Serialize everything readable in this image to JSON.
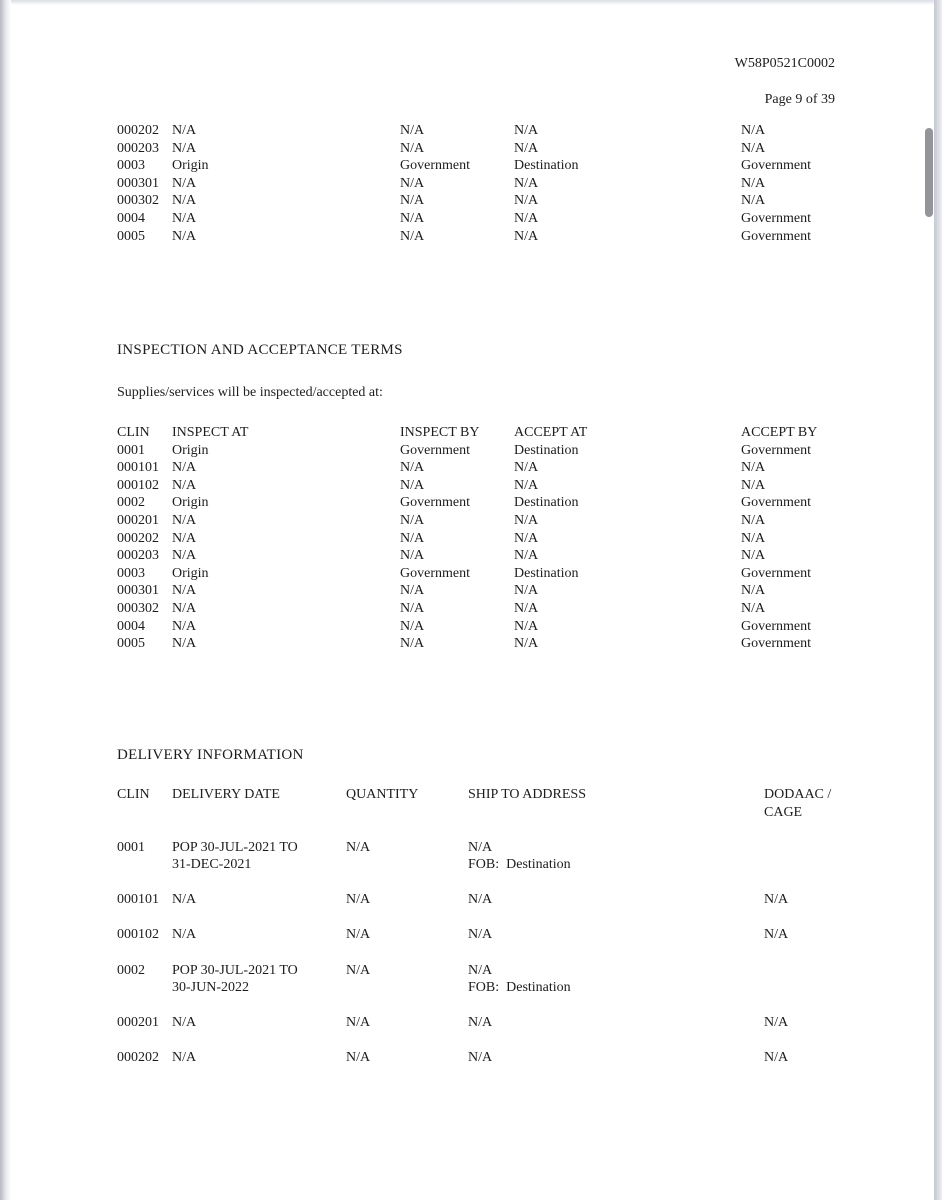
{
  "header": {
    "doc_number": "W58P0521C0002",
    "page_label": "Page 9 of 39"
  },
  "continuation_table": {
    "rows": [
      [
        "000202",
        "N/A",
        "N/A",
        "N/A",
        "N/A"
      ],
      [
        "000203",
        "N/A",
        "N/A",
        "N/A",
        "N/A"
      ],
      [
        "0003",
        "Origin",
        "Government",
        "Destination",
        "Government"
      ],
      [
        "000301",
        "N/A",
        "N/A",
        "N/A",
        "N/A"
      ],
      [
        "000302",
        "N/A",
        "N/A",
        "N/A",
        "N/A"
      ],
      [
        "0004",
        "N/A",
        "N/A",
        "N/A",
        "Government"
      ],
      [
        "0005",
        "N/A",
        "N/A",
        "N/A",
        "Government"
      ]
    ]
  },
  "inspection_section": {
    "heading": "INSPECTION AND ACCEPTANCE TERMS",
    "intro": "Supplies/services will be inspected/accepted at:",
    "headers": [
      "CLIN",
      "INSPECT AT",
      "INSPECT BY",
      "ACCEPT AT",
      "ACCEPT BY"
    ],
    "rows": [
      [
        "0001",
        "Origin",
        "Government",
        "Destination",
        "Government"
      ],
      [
        "000101",
        "N/A",
        "N/A",
        "N/A",
        "N/A"
      ],
      [
        "000102",
        "N/A",
        "N/A",
        "N/A",
        "N/A"
      ],
      [
        "0002",
        "Origin",
        "Government",
        "Destination",
        "Government"
      ],
      [
        "000201",
        "N/A",
        "N/A",
        "N/A",
        "N/A"
      ],
      [
        "000202",
        "N/A",
        "N/A",
        "N/A",
        "N/A"
      ],
      [
        "000203",
        "N/A",
        "N/A",
        "N/A",
        "N/A"
      ],
      [
        "0003",
        "Origin",
        "Government",
        "Destination",
        "Government"
      ],
      [
        "000301",
        "N/A",
        "N/A",
        "N/A",
        "N/A"
      ],
      [
        "000302",
        "N/A",
        "N/A",
        "N/A",
        "N/A"
      ],
      [
        "0004",
        "N/A",
        "N/A",
        "N/A",
        "Government"
      ],
      [
        "0005",
        "N/A",
        "N/A",
        "N/A",
        "Government"
      ]
    ]
  },
  "delivery_section": {
    "heading": "DELIVERY INFORMATION",
    "headers": [
      "CLIN",
      "DELIVERY DATE",
      "QUANTITY",
      "SHIP TO ADDRESS",
      "DODAAC /\nCAGE"
    ],
    "rows": [
      [
        "0001",
        "POP 30-JUL-2021 TO\n31-DEC-2021",
        "N/A",
        "N/A\nFOB:  Destination",
        ""
      ],
      [
        "000101",
        "N/A",
        "N/A",
        "N/A",
        "N/A"
      ],
      [
        "000102",
        "N/A",
        "N/A",
        "N/A",
        "N/A"
      ],
      [
        "0002",
        "POP 30-JUL-2021 TO\n30-JUN-2022",
        "N/A",
        "N/A\nFOB:  Destination",
        ""
      ],
      [
        "000201",
        "N/A",
        "N/A",
        "N/A",
        "N/A"
      ],
      [
        "000202",
        "N/A",
        "N/A",
        "N/A",
        "N/A"
      ]
    ]
  },
  "colors": {
    "text": "#1d1d20",
    "page_background": "#ffffff",
    "edge_shade": "#b7b8c2",
    "scrollbar_thumb": "#94959b"
  }
}
